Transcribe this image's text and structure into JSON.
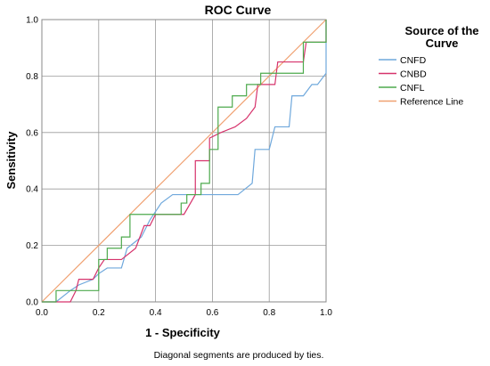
{
  "chart_data": {
    "type": "line",
    "title": "ROC Curve",
    "xlabel": "1 - Specificity",
    "ylabel": "Sensitivity",
    "xlim": [
      0,
      1
    ],
    "ylim": [
      0,
      1
    ],
    "x_ticks": [
      "0.0",
      "0.2",
      "0.4",
      "0.6",
      "0.8",
      "1.0"
    ],
    "y_ticks": [
      "0.0",
      "0.2",
      "0.4",
      "0.6",
      "0.8",
      "1.0"
    ],
    "grid": true,
    "legend": {
      "title_line1": "Source of the",
      "title_line2": "Curve",
      "placement": "right"
    },
    "footnote": "Diagonal segments are produced by ties.",
    "series": [
      {
        "name": "CNFD",
        "color": "#6fa8dc",
        "x": [
          0,
          0.05,
          0.1,
          0.13,
          0.18,
          0.2,
          0.23,
          0.28,
          0.3,
          0.35,
          0.38,
          0.42,
          0.46,
          0.48,
          0.55,
          0.6,
          0.64,
          0.69,
          0.74,
          0.75,
          0.8,
          0.82,
          0.87,
          0.88,
          0.92,
          0.95,
          0.97,
          1.0,
          1.0
        ],
        "y": [
          0,
          0,
          0.04,
          0.06,
          0.08,
          0.1,
          0.12,
          0.12,
          0.19,
          0.23,
          0.29,
          0.35,
          0.38,
          0.38,
          0.38,
          0.38,
          0.38,
          0.38,
          0.42,
          0.54,
          0.54,
          0.62,
          0.62,
          0.73,
          0.73,
          0.77,
          0.77,
          0.81,
          1.0
        ]
      },
      {
        "name": "CNBD",
        "color": "#d6336c",
        "x": [
          0,
          0.1,
          0.12,
          0.13,
          0.18,
          0.2,
          0.22,
          0.25,
          0.28,
          0.33,
          0.36,
          0.38,
          0.4,
          0.45,
          0.5,
          0.54,
          0.54,
          0.59,
          0.59,
          0.63,
          0.68,
          0.72,
          0.75,
          0.76,
          0.82,
          0.83,
          0.92,
          0.93,
          0.97,
          1.0,
          1.0
        ],
        "y": [
          0,
          0,
          0.04,
          0.08,
          0.08,
          0.12,
          0.15,
          0.15,
          0.15,
          0.19,
          0.27,
          0.27,
          0.31,
          0.31,
          0.31,
          0.38,
          0.5,
          0.5,
          0.58,
          0.6,
          0.62,
          0.65,
          0.69,
          0.77,
          0.77,
          0.85,
          0.85,
          0.92,
          0.92,
          0.92,
          1.0
        ]
      },
      {
        "name": "CNFL",
        "color": "#4daa4d",
        "x": [
          0,
          0.05,
          0.05,
          0.2,
          0.2,
          0.23,
          0.23,
          0.28,
          0.28,
          0.31,
          0.31,
          0.49,
          0.49,
          0.51,
          0.51,
          0.56,
          0.56,
          0.59,
          0.59,
          0.62,
          0.62,
          0.67,
          0.67,
          0.72,
          0.72,
          0.77,
          0.77,
          0.82,
          0.82,
          0.92,
          0.92,
          0.97,
          0.97,
          1.0,
          1.0
        ],
        "y": [
          0,
          0,
          0.04,
          0.04,
          0.15,
          0.15,
          0.19,
          0.19,
          0.23,
          0.23,
          0.31,
          0.31,
          0.35,
          0.35,
          0.38,
          0.38,
          0.42,
          0.42,
          0.54,
          0.54,
          0.69,
          0.69,
          0.73,
          0.73,
          0.77,
          0.77,
          0.81,
          0.81,
          0.81,
          0.81,
          0.92,
          0.92,
          0.92,
          0.92,
          1.0
        ]
      },
      {
        "name": "Reference Line",
        "color": "#f0a070",
        "x": [
          0,
          1
        ],
        "y": [
          0,
          1
        ]
      }
    ]
  }
}
